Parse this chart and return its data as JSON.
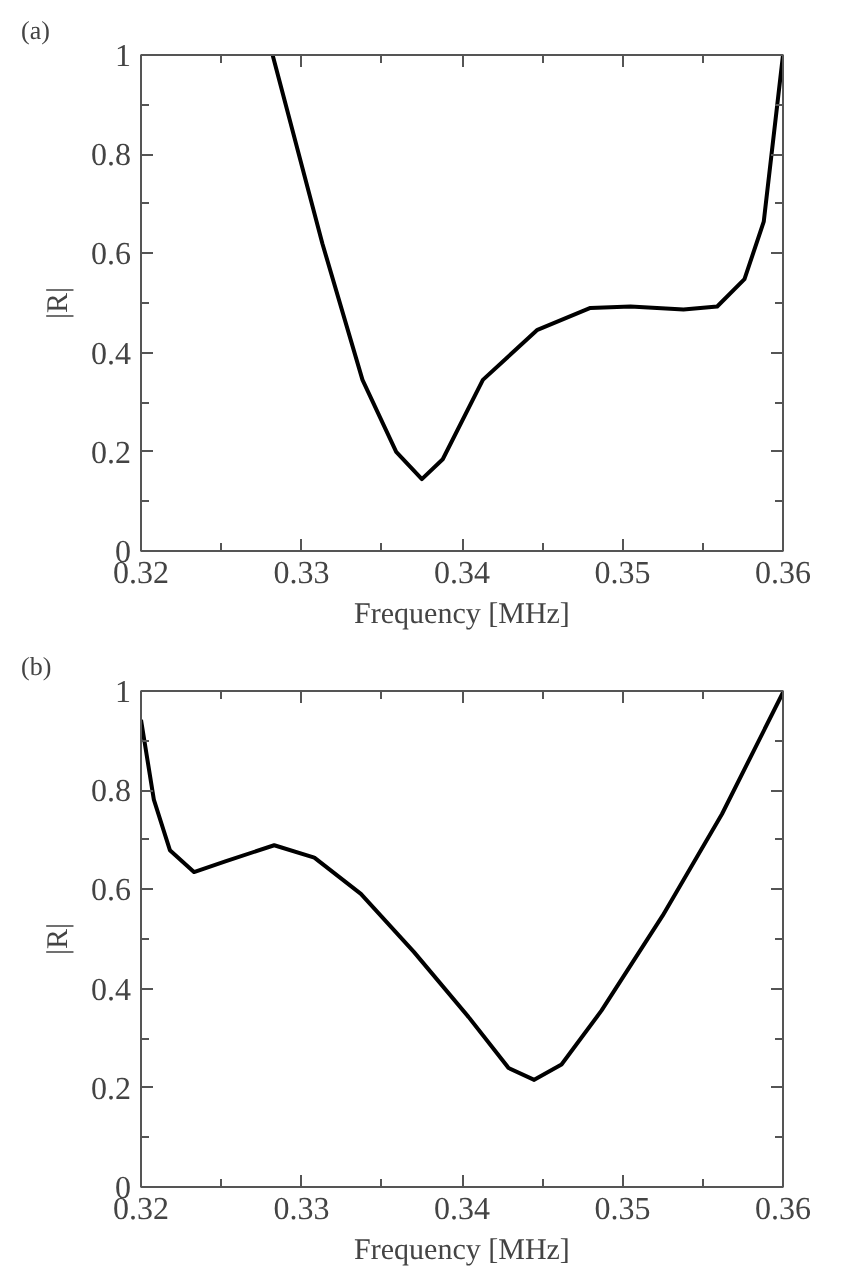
{
  "chart_data": [
    {
      "type": "line",
      "title": "(a)",
      "xlabel": "Frequency [MHz]",
      "ylabel": "|R|",
      "xlim": [
        0.32,
        0.36
      ],
      "ylim": [
        0,
        1
      ],
      "xticks": [
        0.32,
        0.33,
        0.34,
        0.35,
        0.36
      ],
      "yticks": [
        0,
        0.2,
        0.4,
        0.6,
        0.8,
        1
      ],
      "grid": false,
      "series": [
        {
          "color": "#000000",
          "x": [
            0.3282,
            0.3313,
            0.3338,
            0.3359,
            0.3375,
            0.3388,
            0.3413,
            0.3447,
            0.348,
            0.3505,
            0.3538,
            0.3559,
            0.3576,
            0.3588,
            0.36
          ],
          "values": [
            1,
            0.62,
            0.345,
            0.2,
            0.145,
            0.185,
            0.345,
            0.446,
            0.49,
            0.493,
            0.487,
            0.493,
            0.548,
            0.664,
            1
          ]
        }
      ]
    },
    {
      "type": "line",
      "title": "(b)",
      "xlabel": "Frequency [MHz]",
      "ylabel": "|R|",
      "xlim": [
        0.32,
        0.36
      ],
      "ylim": [
        0,
        1
      ],
      "xticks": [
        0.32,
        0.33,
        0.34,
        0.35,
        0.36
      ],
      "yticks": [
        0,
        0.2,
        0.4,
        0.6,
        0.8,
        1
      ],
      "grid": false,
      "series": [
        {
          "color": "#000000",
          "x": [
            0.32,
            0.3208,
            0.3218,
            0.3233,
            0.3253,
            0.3283,
            0.3308,
            0.3337,
            0.337,
            0.3404,
            0.3429,
            0.3445,
            0.3462,
            0.3487,
            0.3525,
            0.3562,
            0.36
          ],
          "values": [
            0.942,
            0.781,
            0.679,
            0.635,
            0.657,
            0.689,
            0.664,
            0.591,
            0.474,
            0.343,
            0.24,
            0.216,
            0.247,
            0.356,
            0.547,
            0.752,
            0.997
          ]
        }
      ]
    }
  ]
}
